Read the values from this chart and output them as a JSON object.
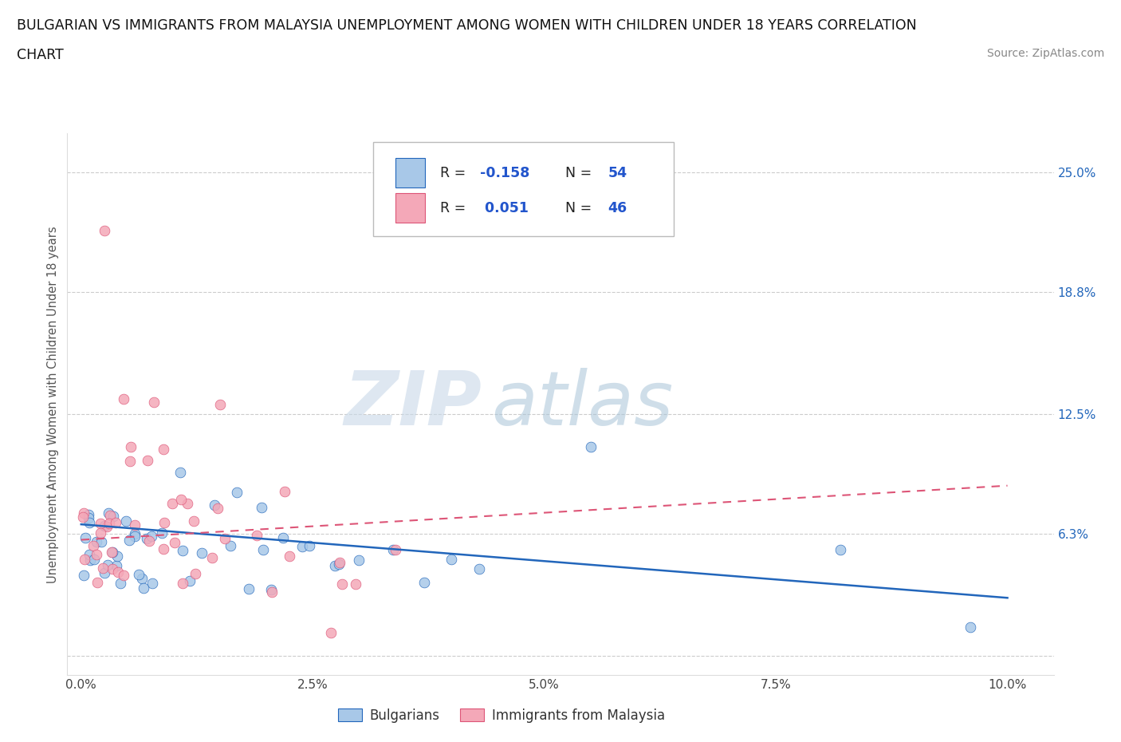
{
  "title_line1": "BULGARIAN VS IMMIGRANTS FROM MALAYSIA UNEMPLOYMENT AMONG WOMEN WITH CHILDREN UNDER 18 YEARS CORRELATION",
  "title_line2": "CHART",
  "source_text": "Source: ZipAtlas.com",
  "ylabel": "Unemployment Among Women with Children Under 18 years",
  "xlim": [
    0.0,
    10.0
  ],
  "ylim": [
    0.0,
    25.0
  ],
  "xtick_values": [
    0.0,
    2.5,
    5.0,
    7.5,
    10.0
  ],
  "ytick_values": [
    0.0,
    6.3,
    12.5,
    18.8,
    25.0
  ],
  "right_ytick_values": [
    6.3,
    12.5,
    18.8,
    25.0
  ],
  "right_ytick_labels": [
    "6.3%",
    "12.5%",
    "18.8%",
    "25.0%"
  ],
  "bulgarian_color": "#a8c8e8",
  "malaysia_color": "#f4a8b8",
  "trendline_bulgarian_color": "#2266bb",
  "trendline_malaysia_color": "#dd5577",
  "watermark_zip": "ZIP",
  "watermark_atlas": "atlas",
  "legend_R_bulgarian": "-0.158",
  "legend_N_bulgarian": "54",
  "legend_R_malaysia": "0.051",
  "legend_N_malaysia": "46",
  "bulg_seed": 42,
  "malay_seed": 99
}
